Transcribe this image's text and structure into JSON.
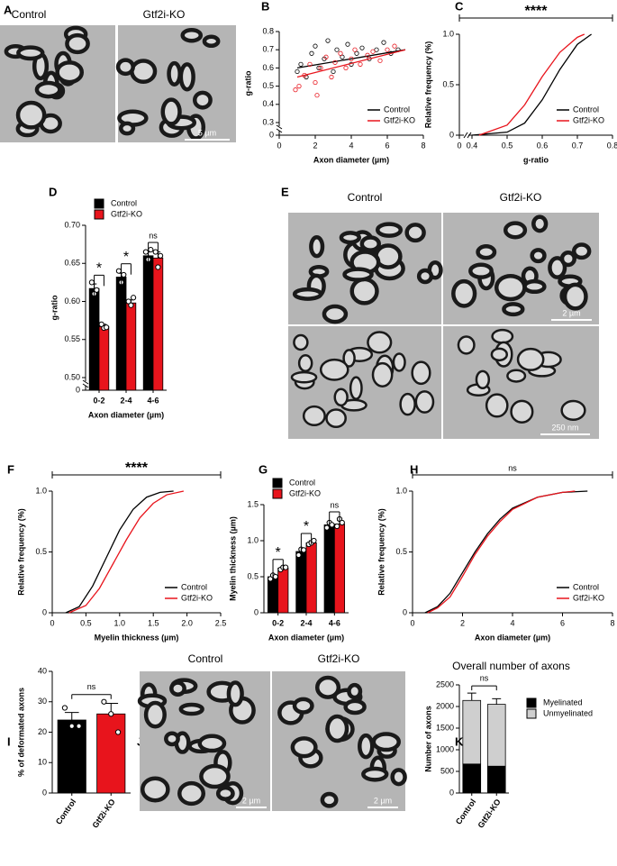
{
  "panels": [
    {
      "label": "A",
      "images": [
        "Control",
        "Gtf2i-KO"
      ],
      "scale_bars": [
        "5 µm"
      ]
    },
    {
      "label": "B",
      "chart": {
        "type": "scatter",
        "xlabel": "Axon diameter (µm)",
        "ylabel": "g-ratio",
        "xlim": [
          0,
          8
        ],
        "xticks": [
          0,
          2,
          4,
          6,
          8
        ],
        "ylim": [
          0,
          0.8
        ],
        "ybreak": [
          0,
          0.3
        ],
        "yticks": [
          0,
          0.3,
          0.4,
          0.5,
          0.6,
          0.7,
          0.8
        ],
        "legend": "lower right",
        "series": [
          {
            "name": "Control",
            "color": "#000000",
            "x": [
              1.2,
              1.5,
              1.8,
              2.0,
              2.2,
              2.5,
              2.7,
              3.0,
              3.2,
              3.5,
              3.8,
              4.0,
              4.3,
              4.6,
              5.0,
              5.4,
              5.8,
              6.2,
              6.6,
              1.0
            ],
            "values": [
              0.62,
              0.55,
              0.68,
              0.72,
              0.6,
              0.65,
              0.75,
              0.58,
              0.7,
              0.66,
              0.73,
              0.62,
              0.68,
              0.71,
              0.65,
              0.7,
              0.74,
              0.68,
              0.7,
              0.58
            ],
            "fit": {
              "x": [
                1,
                7
              ],
              "values": [
                0.6,
                0.7
              ]
            }
          },
          {
            "name": "Gtf2i-KO",
            "color": "#e8141c",
            "x": [
              1.1,
              1.4,
              1.7,
              2.0,
              2.3,
              2.6,
              2.9,
              3.1,
              3.4,
              3.7,
              4.0,
              4.2,
              4.5,
              4.9,
              5.2,
              5.6,
              6.0,
              6.4,
              0.9,
              2.1
            ],
            "values": [
              0.5,
              0.56,
              0.62,
              0.52,
              0.6,
              0.66,
              0.55,
              0.63,
              0.68,
              0.6,
              0.65,
              0.7,
              0.62,
              0.67,
              0.69,
              0.64,
              0.7,
              0.72,
              0.48,
              0.45
            ],
            "fit": {
              "x": [
                1,
                7
              ],
              "values": [
                0.55,
                0.7
              ]
            }
          }
        ]
      }
    },
    {
      "label": "C",
      "chart": {
        "type": "line",
        "xlabel": "g-ratio",
        "ylabel": "Relative frequency (%)",
        "xlim": [
          0,
          0.8
        ],
        "xbreak": [
          0,
          0.4
        ],
        "xticks": [
          0,
          0.4,
          0.5,
          0.6,
          0.7,
          0.8
        ],
        "ylim": [
          0,
          1
        ],
        "yticks": [
          0,
          0.5,
          {
            "value": 1,
            "label": "1.0"
          }
        ],
        "legend": "lower right",
        "annotation": "****",
        "series": [
          {
            "name": "Control",
            "color": "#000000",
            "x": [
              0.4,
              0.5,
              0.55,
              0.6,
              0.65,
              0.7,
              0.74
            ],
            "values": [
              0,
              0.03,
              0.12,
              0.35,
              0.65,
              0.9,
              1.0
            ]
          },
          {
            "name": "Gtf2i-KO",
            "color": "#e8141c",
            "x": [
              0.42,
              0.5,
              0.55,
              0.6,
              0.65,
              0.7,
              0.72
            ],
            "values": [
              0,
              0.1,
              0.3,
              0.58,
              0.82,
              0.97,
              1.0
            ]
          }
        ]
      }
    },
    {
      "label": "D",
      "chart": {
        "type": "bar",
        "xlabel": "Axon diameter (µm)",
        "ylabel": "g-ratio",
        "categories": [
          "0-2",
          "2-4",
          "4-6"
        ],
        "ylim": [
          0,
          0.7
        ],
        "ybreak": [
          0,
          0.5
        ],
        "yticks": [
          0,
          {
            "value": 0.5,
            "label": "0.50"
          },
          {
            "value": 0.55,
            "label": "0.55"
          },
          {
            "value": 0.6,
            "label": "0.60"
          },
          {
            "value": 0.65,
            "label": "0.65"
          },
          {
            "value": 0.7,
            "label": "0.70"
          }
        ],
        "legend": "upper left",
        "annotations": [
          "*",
          "*",
          "ns"
        ],
        "series": [
          {
            "name": "Control",
            "color": "#000000",
            "values": [
              0.617,
              0.632,
              0.66
            ],
            "errors": [
              0.006,
              0.005,
              0.005
            ],
            "points": [
              [
                0.625,
                0.61,
                0.615
              ],
              [
                0.64,
                0.625,
                0.635
              ],
              [
                0.665,
                0.655,
                0.668
              ]
            ]
          },
          {
            "name": "Gtf2i-KO",
            "color": "#e8141c",
            "values": [
              0.567,
              0.598,
              0.657
            ],
            "errors": [
              0.003,
              0.004,
              0.008
            ],
            "points": [
              [
                0.57,
                0.565,
                0.566
              ],
              [
                0.6,
                0.595,
                0.605
              ],
              [
                0.665,
                0.645,
                0.66
              ]
            ]
          }
        ]
      }
    },
    {
      "label": "E",
      "images": [
        "Control",
        "Gtf2i-KO"
      ],
      "scale_bars": [
        "2 µm",
        "250 nm"
      ]
    },
    {
      "label": "F",
      "chart": {
        "type": "line",
        "xlabel": "Myelin thickness (µm)",
        "ylabel": "Relative frequency (%)",
        "xlim": [
          0,
          2.5
        ],
        "xticks": [
          0,
          0.5,
          {
            "value": 1,
            "label": "1.0"
          },
          1.5,
          {
            "value": 2,
            "label": "2.0"
          },
          2.5
        ],
        "ylim": [
          0,
          1
        ],
        "yticks": [
          0,
          0.5,
          {
            "value": 1,
            "label": "1.0"
          }
        ],
        "legend": "lower right",
        "annotation": "****",
        "series": [
          {
            "name": "Control",
            "color": "#000000",
            "x": [
              0.2,
              0.4,
              0.6,
              0.8,
              1.0,
              1.2,
              1.4,
              1.6,
              1.8
            ],
            "values": [
              0,
              0.05,
              0.22,
              0.45,
              0.68,
              0.85,
              0.95,
              0.99,
              1.0
            ]
          },
          {
            "name": "Gtf2i-KO",
            "color": "#e8141c",
            "x": [
              0.25,
              0.5,
              0.7,
              0.9,
              1.1,
              1.3,
              1.5,
              1.7,
              1.95
            ],
            "values": [
              0,
              0.06,
              0.2,
              0.4,
              0.6,
              0.78,
              0.9,
              0.97,
              1.0
            ]
          }
        ]
      }
    },
    {
      "label": "G",
      "chart": {
        "type": "bar",
        "xlabel": "Axon diameter (µm)",
        "ylabel": "Myelin thickness (µm)",
        "categories": [
          "0-2",
          "2-4",
          "4-6"
        ],
        "ylim": [
          0,
          1.5
        ],
        "yticks": [
          0,
          0.5,
          {
            "value": 1,
            "label": "1.0"
          },
          1.5
        ],
        "legend": "upper left",
        "annotations": [
          "*",
          "*",
          "ns"
        ],
        "series": [
          {
            "name": "Control",
            "color": "#000000",
            "values": [
              0.5,
              0.85,
              1.22
            ],
            "errors": [
              0.03,
              0.04,
              0.03
            ],
            "points": [
              [
                0.47,
                0.52,
                0.5
              ],
              [
                0.8,
                0.88,
                0.87
              ],
              [
                1.18,
                1.25,
                1.22
              ]
            ]
          },
          {
            "name": "Gtf2i-KO",
            "color": "#e8141c",
            "values": [
              0.62,
              0.97,
              1.23
            ],
            "errors": [
              0.02,
              0.03,
              0.05
            ],
            "points": [
              [
                0.6,
                0.63,
                0.63
              ],
              [
                0.95,
                0.97,
                1.0
              ],
              [
                1.2,
                1.3,
                1.25
              ]
            ]
          }
        ]
      }
    },
    {
      "label": "H",
      "chart": {
        "type": "line",
        "xlabel": "Axon diameter (µm)",
        "ylabel": "Relative frequency (%)",
        "xlim": [
          0,
          8
        ],
        "xticks": [
          0,
          2,
          4,
          6,
          8
        ],
        "ylim": [
          0,
          1
        ],
        "yticks": [
          0,
          0.5,
          {
            "value": 1,
            "label": "1.0"
          }
        ],
        "legend": "lower right",
        "annotation": "ns",
        "series": [
          {
            "name": "Control",
            "color": "#000000",
            "x": [
              0.5,
              1,
              1.5,
              2,
              2.5,
              3,
              3.5,
              4,
              5,
              6,
              7
            ],
            "values": [
              0,
              0.05,
              0.16,
              0.33,
              0.5,
              0.65,
              0.77,
              0.86,
              0.95,
              0.99,
              1.0
            ]
          },
          {
            "name": "Gtf2i-KO",
            "color": "#e8141c",
            "x": [
              0.6,
              1,
              1.5,
              2,
              2.5,
              3,
              3.5,
              4,
              5,
              6,
              6.5
            ],
            "values": [
              0,
              0.04,
              0.13,
              0.3,
              0.48,
              0.63,
              0.75,
              0.85,
              0.95,
              0.99,
              1.0
            ]
          }
        ]
      }
    },
    {
      "label": "I",
      "chart": {
        "type": "bar",
        "ylabel": "% of deformated axons",
        "categories": [
          "Control",
          "Gtf2i-KO"
        ],
        "ylim": [
          0,
          40
        ],
        "yticks": [
          0,
          10,
          20,
          30,
          40
        ],
        "rotate_categories": true,
        "annotation": "ns",
        "series": [
          {
            "colors": [
              "#000000",
              "#e8141c"
            ],
            "values": [
              24,
              26
            ],
            "errors": [
              2.5,
              3.5
            ],
            "points": [
              [
                28,
                22,
                22
              ],
              [
                30,
                26,
                20
              ]
            ]
          }
        ]
      }
    },
    {
      "label": "J",
      "images": [
        "Control",
        "Gtf2i-KO"
      ],
      "scale_bars": [
        "2 µm",
        "2 µm"
      ]
    },
    {
      "label": "K",
      "chart": {
        "type": "bar",
        "stacked": true,
        "title": "Overall number of axons",
        "ylabel": "Number of axons",
        "categories": [
          "Control",
          "Gtf2i-KO"
        ],
        "ylim": [
          0,
          2500
        ],
        "yticks": [
          0,
          500,
          1000,
          1500,
          2000,
          2500
        ],
        "rotate_categories": true,
        "legend": "right",
        "annotation": "ns",
        "series": [
          {
            "name": "Myelinated",
            "color": "#000000",
            "values": [
              670,
              620
            ],
            "errors": [
              40,
              50
            ]
          },
          {
            "name": "Unmyelinated",
            "color": "#cfcfcf",
            "values": [
              1470,
              1430
            ],
            "errors": [
              170,
              130
            ]
          }
        ]
      }
    }
  ]
}
